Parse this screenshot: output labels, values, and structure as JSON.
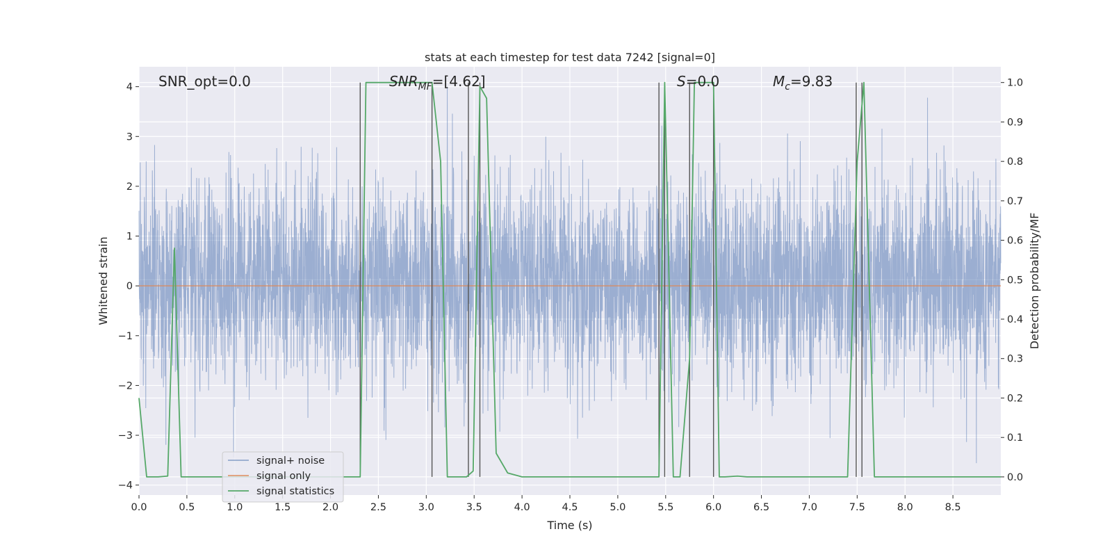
{
  "chart_data": {
    "type": "line",
    "title": "stats at each timestep for test data 7242 [signal=0]",
    "xlabel": "Time (s)",
    "ylabel": "Whitened strain",
    "y2label": "Detection probability/MF",
    "xlim": [
      0.0,
      9.0
    ],
    "ylim": [
      -4.2,
      4.4
    ],
    "y2lim": [
      -0.046,
      1.04
    ],
    "xticks": [
      0.0,
      0.5,
      1.0,
      1.5,
      2.0,
      2.5,
      3.0,
      3.5,
      4.0,
      4.5,
      5.0,
      5.5,
      6.0,
      6.5,
      7.0,
      7.5,
      8.0,
      8.5
    ],
    "xtick_labels": [
      "0.0",
      "0.5",
      "1.0",
      "1.5",
      "2.0",
      "2.5",
      "3.0",
      "3.5",
      "4.0",
      "4.5",
      "5.0",
      "5.5",
      "6.0",
      "6.5",
      "7.0",
      "7.5",
      "8.0",
      "8.5"
    ],
    "yticks": [
      4,
      3,
      2,
      1,
      0,
      -1,
      -2,
      -3,
      -4
    ],
    "ytick_labels": [
      "4",
      "3",
      "2",
      "1",
      "0",
      "−1",
      "−2",
      "−3",
      "−4"
    ],
    "y2ticks": [
      1.0,
      0.9,
      0.8,
      0.7,
      0.6,
      0.5,
      0.4,
      0.3,
      0.2,
      0.1,
      0.0
    ],
    "y2tick_labels": [
      "1.0",
      "0.9",
      "0.8",
      "0.7",
      "0.6",
      "0.5",
      "0.4",
      "0.3",
      "0.2",
      "0.1",
      "0.0"
    ],
    "grid": true,
    "legend_position": "lower-left",
    "annotations": {
      "snr_opt": "SNR_opt=0.0",
      "snr_mf_main": "SNR",
      "snr_mf_sub": "MF",
      "snr_mf_value": "=[4.62]",
      "s_main": "S",
      "s_value": "=0.0",
      "mc_main": "M",
      "mc_sub": "c",
      "mc_value": "=9.83"
    },
    "series": [
      {
        "name": "signal+ noise",
        "axis": "left",
        "color": "#4c72b0",
        "description": "whitened noise, approx. gaussian, std ~1, extremes +/-4",
        "envelope_typical": [
          -1.6,
          2.0
        ],
        "envelope_extreme": [
          -3.9,
          4.0
        ]
      },
      {
        "name": "signal only",
        "axis": "left",
        "color": "#dd8452",
        "x": [
          0.0,
          9.0
        ],
        "values": [
          0.0,
          0.0
        ]
      },
      {
        "name": "signal statistics",
        "axis": "right",
        "color": "#55a868",
        "x": [
          0.0,
          0.08,
          0.2,
          0.3,
          0.37,
          0.44,
          0.55,
          2.2,
          2.31,
          2.37,
          2.6,
          3.06,
          3.15,
          3.22,
          3.42,
          3.49,
          3.56,
          3.63,
          3.73,
          3.85,
          4.0,
          5.43,
          5.49,
          5.58,
          5.65,
          5.75,
          5.8,
          6.0,
          6.06,
          6.12,
          6.25,
          6.35,
          7.4,
          7.5,
          7.57,
          7.68,
          9.0
        ],
        "values": [
          0.2,
          0.0,
          0.0,
          0.002,
          0.58,
          0.0,
          0.0,
          0.0,
          0.0,
          1.0,
          1.0,
          1.0,
          0.8,
          0.0,
          0.0,
          0.015,
          0.99,
          0.96,
          0.06,
          0.01,
          0.0,
          0.0,
          1.0,
          0.0,
          0.0,
          0.3,
          1.0,
          1.0,
          0.0,
          0.0,
          0.002,
          0.0,
          0.0,
          0.8,
          1.0,
          0.0,
          0.0
        ]
      }
    ],
    "vertical_markers": [
      {
        "x": 2.31,
        "y_top": 1.0,
        "y_bottom": 0.0
      },
      {
        "x": 3.06,
        "y_top": 1.0,
        "y_bottom": 0.0
      },
      {
        "x": 3.44,
        "y_top": 1.0,
        "y_bottom": 0.0
      },
      {
        "x": 3.56,
        "y_top": 1.0,
        "y_bottom": 0.0
      },
      {
        "x": 5.43,
        "y_top": 1.0,
        "y_bottom": 0.0
      },
      {
        "x": 5.49,
        "y_top": 1.0,
        "y_bottom": 0.0
      },
      {
        "x": 5.75,
        "y_top": 1.0,
        "y_bottom": 0.0
      },
      {
        "x": 6.0,
        "y_top": 1.0,
        "y_bottom": 0.0
      },
      {
        "x": 7.49,
        "y_top": 1.0,
        "y_bottom": 0.0
      },
      {
        "x": 7.55,
        "y_top": 1.0,
        "y_bottom": 0.0
      }
    ]
  }
}
